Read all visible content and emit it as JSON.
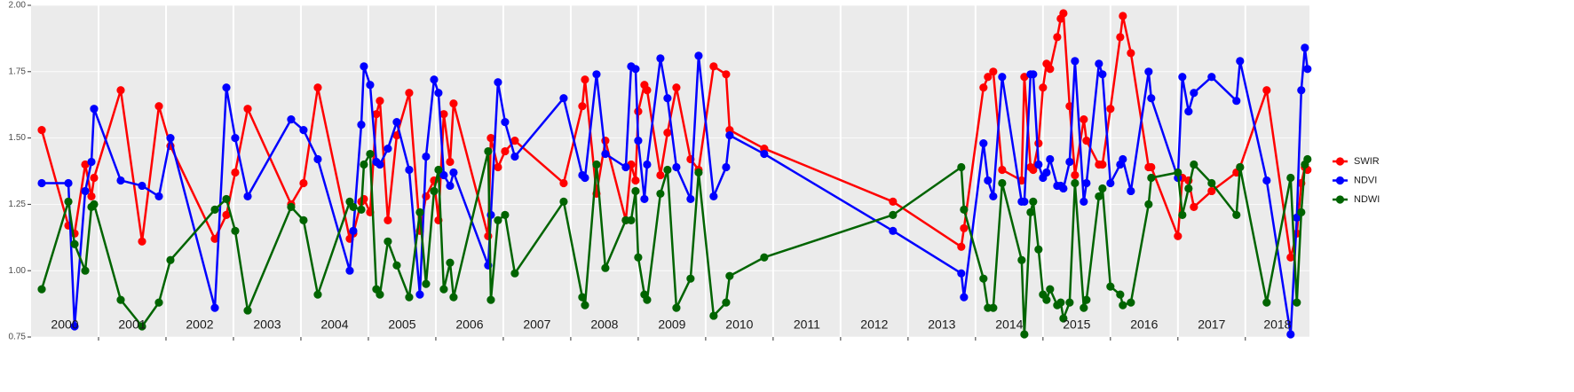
{
  "chart_data": {
    "type": "line",
    "x": [
      2000.158,
      2000.553,
      2000.645,
      2000.803,
      2000.895,
      2000.934,
      2001.329,
      2001.645,
      2001.895,
      2002.066,
      2002.724,
      2002.895,
      2003.026,
      2003.211,
      2003.855,
      2004.039,
      2004.25,
      2004.724,
      2004.776,
      2004.895,
      2004.934,
      2005.026,
      2005.118,
      2005.171,
      2005.289,
      2005.421,
      2005.605,
      2005.763,
      2005.855,
      2005.974,
      2006.039,
      2006.118,
      2006.211,
      2006.263,
      2006.776,
      2006.816,
      2006.921,
      2007.026,
      2007.171,
      2007.895,
      2008.171,
      2008.211,
      2008.382,
      2008.513,
      2008.816,
      2008.895,
      2008.961,
      2009.0,
      2009.092,
      2009.132,
      2009.329,
      2009.434,
      2009.566,
      2009.776,
      2009.895,
      2010.118,
      2010.303,
      2010.355,
      2010.868,
      2012.776,
      2013.789,
      2013.829,
      2014.118,
      2014.184,
      2014.263,
      2014.395,
      2014.684,
      2014.724,
      2014.816,
      2014.855,
      2014.934,
      2015.0,
      2015.053,
      2015.105,
      2015.211,
      2015.263,
      2015.303,
      2015.395,
      2015.474,
      2015.605,
      2015.645,
      2015.829,
      2015.882,
      2016.0,
      2016.145,
      2016.184,
      2016.303,
      2016.566,
      2016.605,
      2017.0,
      2017.066,
      2017.158,
      2017.237,
      2017.5,
      2017.868,
      2017.921,
      2018.316,
      2018.671,
      2018.763,
      2018.829,
      2018.882,
      2018.921
    ],
    "xlim": [
      2000,
      2018.95
    ],
    "xticks": [
      2001,
      2002,
      2003,
      2004,
      2005,
      2006,
      2007,
      2008,
      2009,
      2010,
      2011,
      2012,
      2013,
      2014,
      2015,
      2016,
      2017,
      2018
    ],
    "year_labels": [
      "2000",
      "2001",
      "2002",
      "2003",
      "2004",
      "2005",
      "2006",
      "2007",
      "2008",
      "2009",
      "2010",
      "2011",
      "2012",
      "2013",
      "2014",
      "2015",
      "2016",
      "2017",
      "2018"
    ],
    "ylim": [
      0.75,
      2.0
    ],
    "yticks": [
      0.75,
      {
        "value": 1,
        "label": "1.00"
      },
      1.25,
      {
        "value": 1.5,
        "label": "1.50"
      },
      1.75,
      {
        "value": 2,
        "label": "2.00"
      }
    ],
    "grid": true,
    "legend": "right",
    "series": [
      {
        "name": "SWIR",
        "color": "#ff0000",
        "values": [
          1.53,
          1.17,
          1.14,
          1.4,
          1.28,
          1.35,
          1.68,
          1.11,
          1.62,
          1.47,
          1.12,
          1.21,
          1.37,
          1.61,
          1.25,
          1.33,
          1.69,
          1.12,
          1.14,
          1.26,
          1.27,
          1.22,
          1.59,
          1.64,
          1.19,
          1.51,
          1.67,
          1.15,
          1.28,
          1.34,
          1.19,
          1.59,
          1.41,
          1.63,
          1.13,
          1.5,
          1.39,
          1.45,
          1.49,
          1.33,
          1.62,
          1.72,
          1.29,
          1.49,
          1.19,
          1.4,
          1.34,
          1.6,
          1.7,
          1.68,
          1.36,
          1.52,
          1.69,
          1.42,
          1.38,
          1.77,
          1.74,
          1.53,
          1.46,
          1.26,
          1.09,
          1.16,
          1.69,
          1.73,
          1.75,
          1.38,
          1.34,
          1.73,
          1.39,
          1.38,
          1.48,
          1.69,
          1.78,
          1.76,
          1.88,
          1.95,
          1.97,
          1.62,
          1.36,
          1.57,
          1.49,
          1.4,
          1.4,
          1.61,
          1.88,
          1.96,
          1.82,
          1.39,
          1.39,
          1.13,
          1.35,
          1.34,
          1.24,
          1.3,
          1.37,
          1.39,
          1.68,
          1.05,
          1.14,
          1.33,
          1.39,
          1.38
        ]
      },
      {
        "name": "NDVI",
        "color": "#0000ff",
        "values": [
          1.33,
          1.33,
          0.79,
          1.3,
          1.41,
          1.61,
          1.34,
          1.32,
          1.28,
          1.5,
          0.86,
          1.69,
          1.5,
          1.28,
          1.57,
          1.53,
          1.42,
          1.0,
          1.15,
          1.55,
          1.77,
          1.7,
          1.41,
          1.4,
          1.46,
          1.56,
          1.38,
          0.91,
          1.43,
          1.72,
          1.67,
          1.36,
          1.32,
          1.37,
          1.02,
          1.21,
          1.71,
          1.56,
          1.43,
          1.65,
          1.36,
          1.35,
          1.74,
          1.44,
          1.39,
          1.77,
          1.76,
          1.49,
          1.27,
          1.4,
          1.8,
          1.65,
          1.39,
          1.27,
          1.81,
          1.28,
          1.39,
          1.51,
          1.44,
          1.15,
          0.99,
          0.9,
          1.48,
          1.34,
          1.28,
          1.73,
          1.26,
          1.26,
          1.74,
          1.74,
          1.4,
          1.35,
          1.37,
          1.42,
          1.32,
          1.32,
          1.31,
          1.41,
          1.79,
          1.26,
          1.33,
          1.78,
          1.74,
          1.33,
          1.4,
          1.42,
          1.3,
          1.75,
          1.65,
          1.35,
          1.73,
          1.6,
          1.67,
          1.73,
          1.64,
          1.79,
          1.34,
          0.76,
          1.2,
          1.68,
          1.84,
          1.76
        ]
      },
      {
        "name": "NDWI",
        "color": "#006400",
        "values": [
          0.93,
          1.26,
          1.1,
          1.0,
          1.24,
          1.25,
          0.89,
          0.79,
          0.88,
          1.04,
          1.23,
          1.27,
          1.15,
          0.85,
          1.24,
          1.19,
          0.91,
          1.26,
          1.24,
          1.23,
          1.4,
          1.44,
          0.93,
          0.91,
          1.11,
          1.02,
          0.9,
          1.22,
          0.95,
          1.3,
          1.38,
          0.93,
          1.03,
          0.9,
          1.45,
          0.89,
          1.19,
          1.21,
          0.99,
          1.26,
          0.9,
          0.87,
          1.4,
          1.01,
          1.19,
          1.19,
          1.3,
          1.05,
          0.91,
          0.89,
          1.29,
          1.38,
          0.86,
          0.97,
          1.37,
          0.83,
          0.88,
          0.98,
          1.05,
          1.21,
          1.39,
          1.23,
          0.97,
          0.86,
          0.86,
          1.33,
          1.04,
          0.76,
          1.22,
          1.26,
          1.08,
          0.91,
          0.89,
          0.93,
          0.87,
          0.88,
          0.82,
          0.88,
          1.33,
          0.86,
          0.89,
          1.28,
          1.31,
          0.94,
          0.91,
          0.87,
          0.88,
          1.25,
          1.35,
          1.37,
          1.21,
          1.31,
          1.4,
          1.33,
          1.21,
          1.39,
          0.88,
          1.35,
          0.88,
          1.22,
          1.4,
          1.42
        ]
      }
    ]
  }
}
